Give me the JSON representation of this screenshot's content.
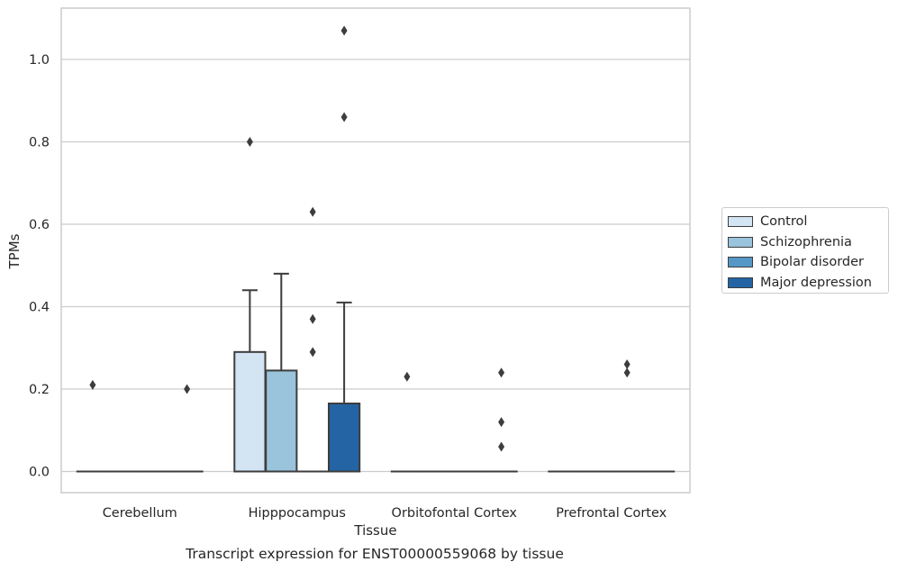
{
  "chart_data": {
    "type": "box",
    "ylabel": "TPMs",
    "xlabel": "Tissue",
    "caption": "Transcript expression for ENST00000559068 by tissue",
    "ylim": [
      -0.05,
      1.13
    ],
    "yticks": [
      0.0,
      0.2,
      0.4,
      0.6,
      0.8,
      1.0
    ],
    "ytick_labels": [
      "0.0",
      "0.2",
      "0.4",
      "0.6",
      "0.8",
      "1.0"
    ],
    "grid": "horizontal",
    "legend_position": "right",
    "categories": [
      "Cerebellum",
      "Hipppocampus",
      "Orbitofontal Cortex",
      "Prefrontal Cortex"
    ],
    "series": [
      {
        "name": "Control",
        "color": "#d3e4f3",
        "boxes": [
          {
            "q1": 0,
            "median": 0,
            "q3": 0,
            "whisker_low": 0,
            "whisker_high": 0,
            "outliers": [
              0.21
            ]
          },
          {
            "q1": 0,
            "median": 0,
            "q3": 0.29,
            "whisker_low": 0,
            "whisker_high": 0.44,
            "outliers": [
              0.8
            ]
          },
          {
            "q1": 0,
            "median": 0,
            "q3": 0,
            "whisker_low": 0,
            "whisker_high": 0,
            "outliers": [
              0.23
            ]
          },
          {
            "q1": 0,
            "median": 0,
            "q3": 0,
            "whisker_low": 0,
            "whisker_high": 0,
            "outliers": []
          }
        ]
      },
      {
        "name": "Schizophrenia",
        "color": "#9ac3dc",
        "boxes": [
          {
            "q1": 0,
            "median": 0,
            "q3": 0,
            "whisker_low": 0,
            "whisker_high": 0,
            "outliers": []
          },
          {
            "q1": 0,
            "median": 0,
            "q3": 0.245,
            "whisker_low": 0,
            "whisker_high": 0.48,
            "outliers": []
          },
          {
            "q1": 0,
            "median": 0,
            "q3": 0,
            "whisker_low": 0,
            "whisker_high": 0,
            "outliers": []
          },
          {
            "q1": 0,
            "median": 0,
            "q3": 0,
            "whisker_low": 0,
            "whisker_high": 0,
            "outliers": []
          }
        ]
      },
      {
        "name": "Bipolar disorder",
        "color": "#5597c6",
        "boxes": [
          {
            "q1": 0,
            "median": 0,
            "q3": 0,
            "whisker_low": 0,
            "whisker_high": 0,
            "outliers": []
          },
          {
            "q1": 0,
            "median": 0,
            "q3": 0,
            "whisker_low": 0,
            "whisker_high": 0,
            "outliers": [
              0.63,
              0.37,
              0.29
            ]
          },
          {
            "q1": 0,
            "median": 0,
            "q3": 0,
            "whisker_low": 0,
            "whisker_high": 0,
            "outliers": []
          },
          {
            "q1": 0,
            "median": 0,
            "q3": 0,
            "whisker_low": 0,
            "whisker_high": 0,
            "outliers": [
              0.26,
              0.24
            ]
          }
        ]
      },
      {
        "name": "Major depression",
        "color": "#2464a5",
        "boxes": [
          {
            "q1": 0,
            "median": 0,
            "q3": 0,
            "whisker_low": 0,
            "whisker_high": 0,
            "outliers": [
              0.2
            ]
          },
          {
            "q1": 0,
            "median": 0,
            "q3": 0.165,
            "whisker_low": 0,
            "whisker_high": 0.41,
            "outliers": [
              1.07,
              0.86
            ]
          },
          {
            "q1": 0,
            "median": 0,
            "q3": 0,
            "whisker_low": 0,
            "whisker_high": 0,
            "outliers": [
              0.24,
              0.12,
              0.06
            ]
          },
          {
            "q1": 0,
            "median": 0,
            "q3": 0,
            "whisker_low": 0,
            "whisker_high": 0,
            "outliers": []
          }
        ]
      }
    ]
  }
}
